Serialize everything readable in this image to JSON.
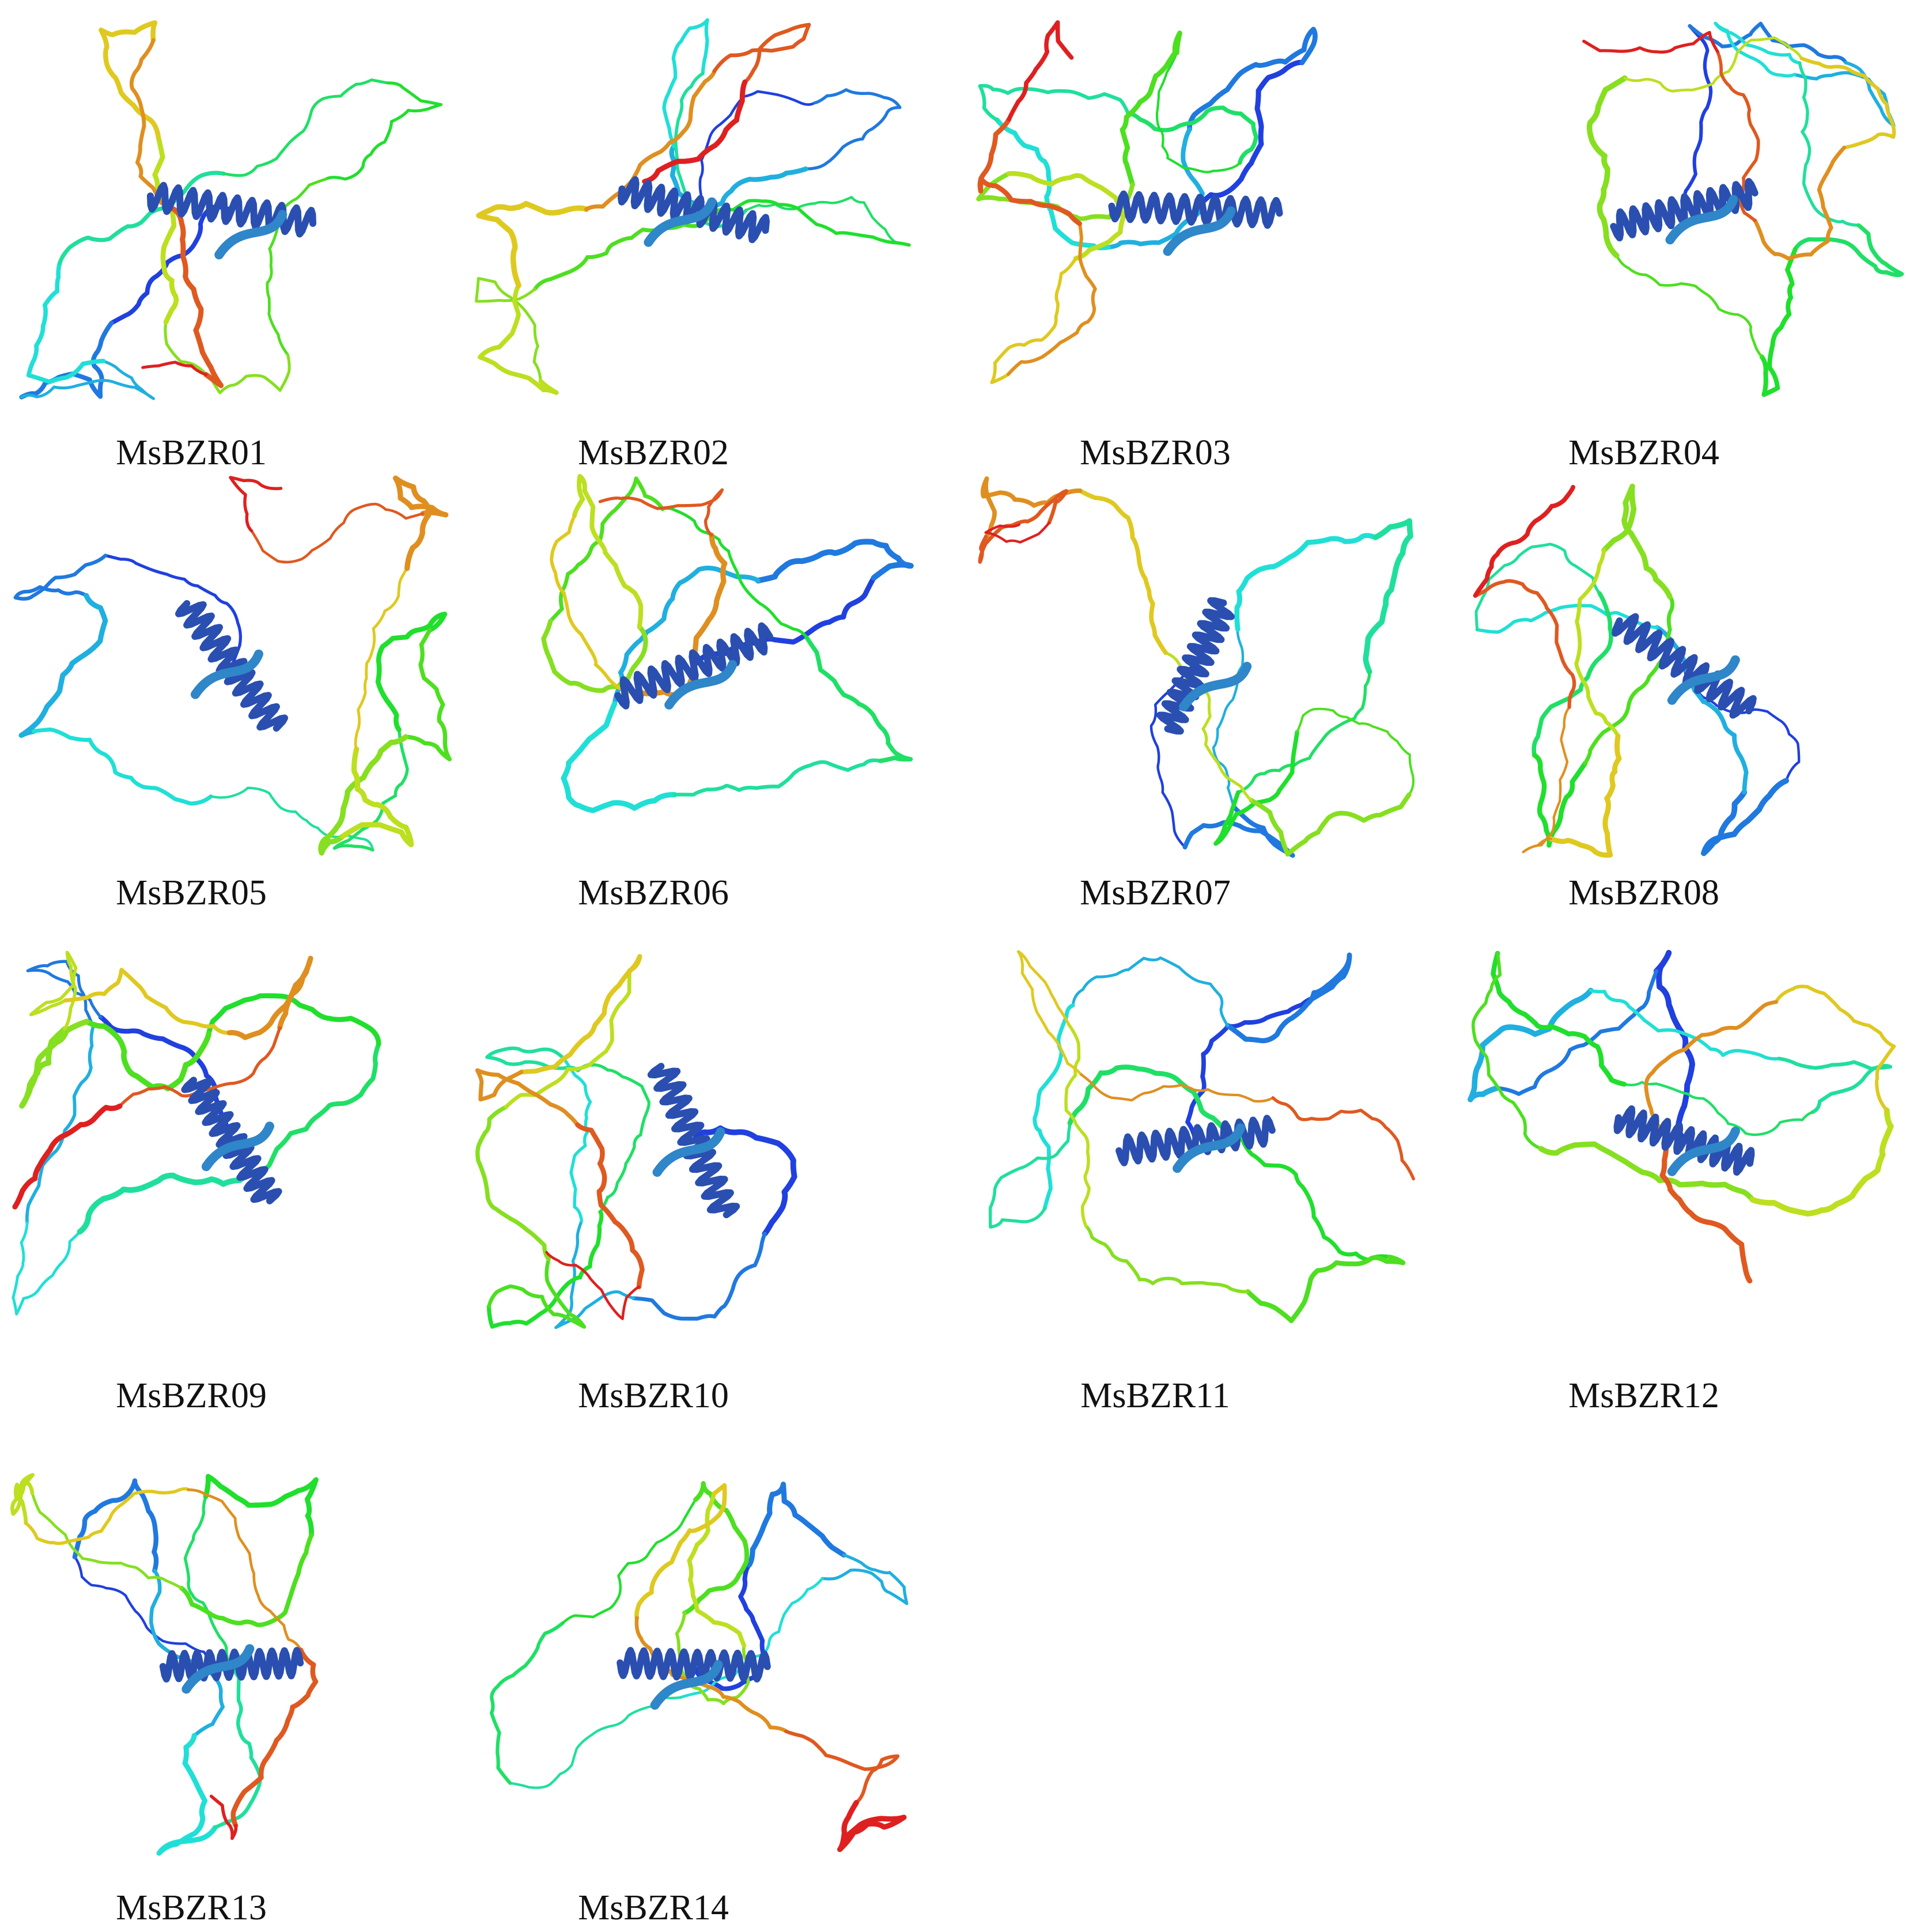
{
  "panels": [
    {
      "label": "MsBZR01"
    },
    {
      "label": "MsBZR02"
    },
    {
      "label": "MsBZR03"
    },
    {
      "label": "MsBZR04"
    },
    {
      "label": "MsBZR05"
    },
    {
      "label": "MsBZR06"
    },
    {
      "label": "MsBZR07"
    },
    {
      "label": "MsBZR08"
    },
    {
      "label": "MsBZR09"
    },
    {
      "label": "MsBZR10"
    },
    {
      "label": "MsBZR11"
    },
    {
      "label": "MsBZR12"
    },
    {
      "label": "MsBZR13"
    },
    {
      "label": "MsBZR14"
    }
  ]
}
